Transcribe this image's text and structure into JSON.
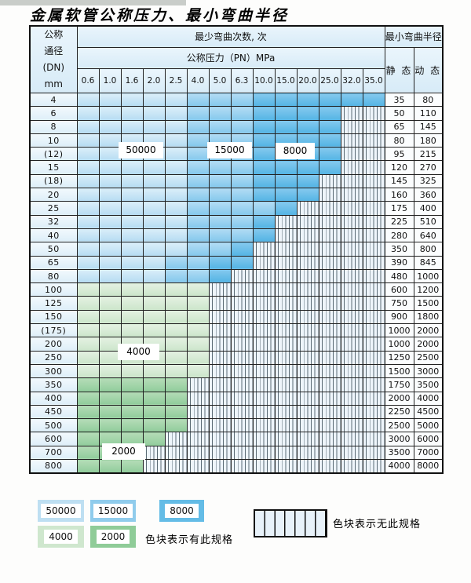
{
  "title": "金属软管公称压力、最小弯曲半径",
  "table": {
    "header": {
      "dn_label": "公称\n通径\n(DN)\nmm",
      "cycles_label": "最少弯曲次数, 次",
      "pressure_label": "公称压力（PN）MPa",
      "radius_label": "最小弯曲半径",
      "static_label": "静 态",
      "dynamic_label": "动 态",
      "pressures": [
        "0.6",
        "1.0",
        "1.6",
        "2.0",
        "2.5",
        "4.0",
        "5.0",
        "6.3",
        "10.0",
        "15.0",
        "20.0",
        "25.0",
        "32.0",
        "35.0"
      ]
    },
    "cell_legend": {
      "L": "50000次-浅蓝",
      "M": "15000次-中蓝",
      "D": "8000次-深蓝",
      "A": "4000次-浅绿",
      "B": "2000次-深绿",
      "X": "无此规格-条纹"
    },
    "rows": [
      {
        "dn": "4",
        "cells": [
          "L",
          "L",
          "L",
          "L",
          "L",
          "M",
          "M",
          "M",
          "D",
          "D",
          "D",
          "D",
          "D",
          "D"
        ],
        "static": "35",
        "dynamic": "80"
      },
      {
        "dn": "6",
        "cells": [
          "L",
          "L",
          "L",
          "L",
          "L",
          "M",
          "M",
          "M",
          "D",
          "D",
          "D",
          "D",
          "X",
          "X"
        ],
        "static": "50",
        "dynamic": "110"
      },
      {
        "dn": "8",
        "cells": [
          "L",
          "L",
          "L",
          "L",
          "L",
          "M",
          "M",
          "M",
          "D",
          "D",
          "D",
          "D",
          "X",
          "X"
        ],
        "static": "65",
        "dynamic": "145"
      },
      {
        "dn": "10",
        "cells": [
          "L",
          "L",
          "L",
          "L",
          "L",
          "M",
          "M",
          "M",
          "D",
          "D",
          "D",
          "D",
          "X",
          "X"
        ],
        "static": "80",
        "dynamic": "180"
      },
      {
        "dn": "(12)",
        "cells": [
          "L",
          "L",
          "L",
          "L",
          "L",
          "M",
          "M",
          "M",
          "D",
          "D",
          "D",
          "D",
          "X",
          "X"
        ],
        "static": "95",
        "dynamic": "215"
      },
      {
        "dn": "15",
        "cells": [
          "L",
          "L",
          "L",
          "L",
          "L",
          "M",
          "M",
          "M",
          "D",
          "D",
          "D",
          "D",
          "X",
          "X"
        ],
        "static": "120",
        "dynamic": "270"
      },
      {
        "dn": "(18)",
        "cells": [
          "L",
          "L",
          "L",
          "L",
          "L",
          "M",
          "M",
          "M",
          "D",
          "D",
          "D",
          "X",
          "X",
          "X"
        ],
        "static": "145",
        "dynamic": "325"
      },
      {
        "dn": "20",
        "cells": [
          "L",
          "L",
          "L",
          "L",
          "L",
          "M",
          "M",
          "M",
          "D",
          "D",
          "D",
          "X",
          "X",
          "X"
        ],
        "static": "160",
        "dynamic": "360"
      },
      {
        "dn": "25",
        "cells": [
          "L",
          "L",
          "L",
          "L",
          "L",
          "M",
          "M",
          "M",
          "M",
          "D",
          "X",
          "X",
          "X",
          "X"
        ],
        "static": "175",
        "dynamic": "400"
      },
      {
        "dn": "32",
        "cells": [
          "L",
          "L",
          "L",
          "L",
          "L",
          "M",
          "M",
          "M",
          "D",
          "X",
          "X",
          "X",
          "X",
          "X"
        ],
        "static": "225",
        "dynamic": "510"
      },
      {
        "dn": "40",
        "cells": [
          "L",
          "L",
          "L",
          "L",
          "L",
          "M",
          "M",
          "M",
          "D",
          "X",
          "X",
          "X",
          "X",
          "X"
        ],
        "static": "280",
        "dynamic": "640"
      },
      {
        "dn": "50",
        "cells": [
          "L",
          "L",
          "L",
          "L",
          "L",
          "M",
          "M",
          "D",
          "X",
          "X",
          "X",
          "X",
          "X",
          "X"
        ],
        "static": "350",
        "dynamic": "800"
      },
      {
        "dn": "65",
        "cells": [
          "L",
          "L",
          "L",
          "L",
          "M",
          "M",
          "D",
          "D",
          "X",
          "X",
          "X",
          "X",
          "X",
          "X"
        ],
        "static": "390",
        "dynamic": "845"
      },
      {
        "dn": "80",
        "cells": [
          "L",
          "L",
          "L",
          "L",
          "M",
          "M",
          "D",
          "X",
          "X",
          "X",
          "X",
          "X",
          "X",
          "X"
        ],
        "static": "480",
        "dynamic": "1000"
      },
      {
        "dn": "100",
        "cells": [
          "A",
          "A",
          "A",
          "A",
          "A",
          "A",
          "X",
          "X",
          "X",
          "X",
          "X",
          "X",
          "X",
          "X"
        ],
        "static": "600",
        "dynamic": "1200"
      },
      {
        "dn": "125",
        "cells": [
          "A",
          "A",
          "A",
          "A",
          "A",
          "A",
          "X",
          "X",
          "X",
          "X",
          "X",
          "X",
          "X",
          "X"
        ],
        "static": "750",
        "dynamic": "1500"
      },
      {
        "dn": "150",
        "cells": [
          "A",
          "A",
          "A",
          "A",
          "A",
          "A",
          "X",
          "X",
          "X",
          "X",
          "X",
          "X",
          "X",
          "X"
        ],
        "static": "900",
        "dynamic": "1800"
      },
      {
        "dn": "(175)",
        "cells": [
          "A",
          "A",
          "A",
          "A",
          "A",
          "A",
          "X",
          "X",
          "X",
          "X",
          "X",
          "X",
          "X",
          "X"
        ],
        "static": "1000",
        "dynamic": "2000"
      },
      {
        "dn": "200",
        "cells": [
          "A",
          "A",
          "A",
          "A",
          "A",
          "A",
          "X",
          "X",
          "X",
          "X",
          "X",
          "X",
          "X",
          "X"
        ],
        "static": "1000",
        "dynamic": "2000"
      },
      {
        "dn": "250",
        "cells": [
          "A",
          "A",
          "A",
          "A",
          "A",
          "A",
          "X",
          "X",
          "X",
          "X",
          "X",
          "X",
          "X",
          "X"
        ],
        "static": "1250",
        "dynamic": "2500"
      },
      {
        "dn": "300",
        "cells": [
          "A",
          "A",
          "A",
          "A",
          "A",
          "A",
          "X",
          "X",
          "X",
          "X",
          "X",
          "X",
          "X",
          "X"
        ],
        "static": "1500",
        "dynamic": "3000"
      },
      {
        "dn": "350",
        "cells": [
          "B",
          "B",
          "B",
          "B",
          "B",
          "X",
          "X",
          "X",
          "X",
          "X",
          "X",
          "X",
          "X",
          "X"
        ],
        "static": "1750",
        "dynamic": "3500"
      },
      {
        "dn": "400",
        "cells": [
          "B",
          "B",
          "B",
          "B",
          "B",
          "X",
          "X",
          "X",
          "X",
          "X",
          "X",
          "X",
          "X",
          "X"
        ],
        "static": "2000",
        "dynamic": "4000"
      },
      {
        "dn": "450",
        "cells": [
          "B",
          "B",
          "B",
          "B",
          "B",
          "X",
          "X",
          "X",
          "X",
          "X",
          "X",
          "X",
          "X",
          "X"
        ],
        "static": "2250",
        "dynamic": "4500"
      },
      {
        "dn": "500",
        "cells": [
          "B",
          "B",
          "B",
          "B",
          "B",
          "X",
          "X",
          "X",
          "X",
          "X",
          "X",
          "X",
          "X",
          "X"
        ],
        "static": "2500",
        "dynamic": "5000"
      },
      {
        "dn": "600",
        "cells": [
          "B",
          "B",
          "B",
          "B",
          "X",
          "X",
          "X",
          "X",
          "X",
          "X",
          "X",
          "X",
          "X",
          "X"
        ],
        "static": "3000",
        "dynamic": "6000"
      },
      {
        "dn": "700",
        "cells": [
          "B",
          "B",
          "B",
          "X",
          "X",
          "X",
          "X",
          "X",
          "X",
          "X",
          "X",
          "X",
          "X",
          "X"
        ],
        "static": "3500",
        "dynamic": "7000"
      },
      {
        "dn": "800",
        "cells": [
          "B",
          "B",
          "B",
          "X",
          "X",
          "X",
          "X",
          "X",
          "X",
          "X",
          "X",
          "X",
          "X",
          "X"
        ],
        "static": "4000",
        "dynamic": "8000"
      }
    ]
  },
  "overlay_labels": {
    "l50000": "50000",
    "l15000": "15000",
    "l8000": "8000",
    "l4000": "4000",
    "l2000": "2000"
  },
  "legend": {
    "items": [
      {
        "value": "50000",
        "color": "#bedff2"
      },
      {
        "value": "15000",
        "color": "#90ccec"
      },
      {
        "value": "8000",
        "color": "#64bce6"
      },
      {
        "value": "4000",
        "color": "#cfe7ce"
      },
      {
        "value": "2000",
        "color": "#8fcc98"
      }
    ],
    "has_spec_text": "色块表示有此规格",
    "no_spec_text": "色块表示无此规格"
  },
  "colors": {
    "blue_50000": "#bedff2",
    "blue_15000": "#90ccec",
    "blue_8000": "#64bce6",
    "green_4000": "#cfe7ce",
    "green_2000": "#8fcc98",
    "stripe_bg": "#eef5fb",
    "header_bg": "#ddeef8"
  }
}
